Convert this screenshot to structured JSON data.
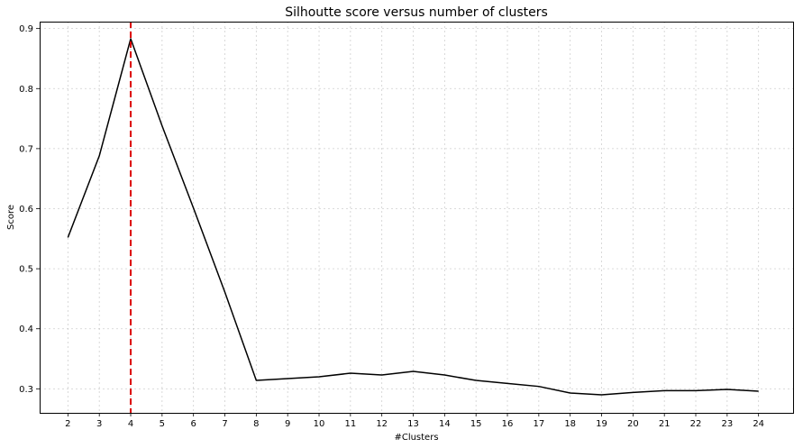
{
  "chart_data": {
    "type": "line",
    "title": "Silhoutte score versus number of clusters",
    "xlabel": "#Clusters",
    "ylabel": "Score",
    "x": [
      2,
      3,
      4,
      5,
      6,
      7,
      8,
      9,
      10,
      11,
      12,
      13,
      14,
      15,
      16,
      17,
      18,
      19,
      20,
      21,
      22,
      23,
      24
    ],
    "series": [
      {
        "values": [
          0.552,
          0.688,
          0.883,
          0.738,
          0.601,
          0.461,
          0.314,
          0.317,
          0.32,
          0.326,
          0.323,
          0.329,
          0.323,
          0.314,
          0.309,
          0.304,
          0.293,
          0.29,
          0.294,
          0.297,
          0.297,
          0.299,
          0.296
        ],
        "color": "#000000"
      }
    ],
    "reference_line": {
      "axis": "x",
      "value": 4,
      "style": "dashed",
      "color": "#dd0000"
    },
    "xlim": [
      1.1,
      25.1
    ],
    "ylim": [
      0.26,
      0.9115
    ],
    "xticks": [
      "2",
      "3",
      "4",
      "5",
      "6",
      "7",
      "8",
      "9",
      "10",
      "11",
      "12",
      "13",
      "14",
      "15",
      "16",
      "17",
      "18",
      "19",
      "20",
      "21",
      "22",
      "23",
      "24"
    ],
    "yticks": [
      "0.3",
      "0.4",
      "0.5",
      "0.6",
      "0.7",
      "0.8",
      "0.9"
    ],
    "grid": true
  }
}
